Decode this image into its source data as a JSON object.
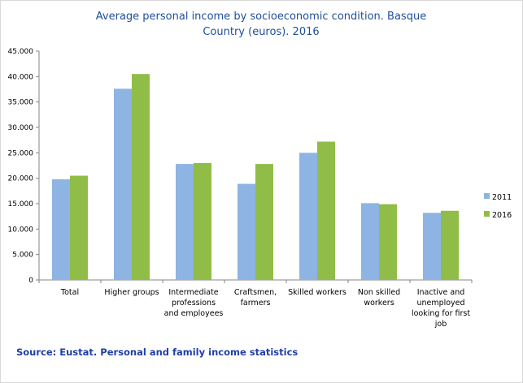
{
  "chart_data": {
    "type": "bar",
    "title_lines": [
      "Average personal income by socioeconomic condition. Basque",
      "Country (euros). 2016"
    ],
    "categories": [
      [
        "Total"
      ],
      [
        "Higher groups"
      ],
      [
        "Intermediate",
        "professions",
        "and employees"
      ],
      [
        "Craftsmen,",
        "farmers"
      ],
      [
        "Skilled workers"
      ],
      [
        "Non skilled",
        "workers"
      ],
      [
        "Inactive and",
        "unemployed",
        "looking for first",
        "job"
      ]
    ],
    "series": [
      {
        "name": "2011",
        "color": "#8db4e2",
        "values": [
          19800,
          37600,
          22800,
          18900,
          25000,
          15100,
          13200
        ]
      },
      {
        "name": "2016",
        "color": "#8fbd47",
        "values": [
          20500,
          40500,
          23000,
          22800,
          27200,
          14900,
          13600
        ]
      }
    ],
    "y_ticks": [
      "0",
      "5.000",
      "10.000",
      "15.000",
      "20.000",
      "25.000",
      "30.000",
      "35.000",
      "40.000",
      "45.000"
    ],
    "ylim": [
      0,
      45000
    ],
    "y_step": 5000,
    "xlabel": "",
    "ylabel": "",
    "legend_position": "right",
    "grid": false
  },
  "source_text": "Source: Eustat. Personal and family income statistics"
}
